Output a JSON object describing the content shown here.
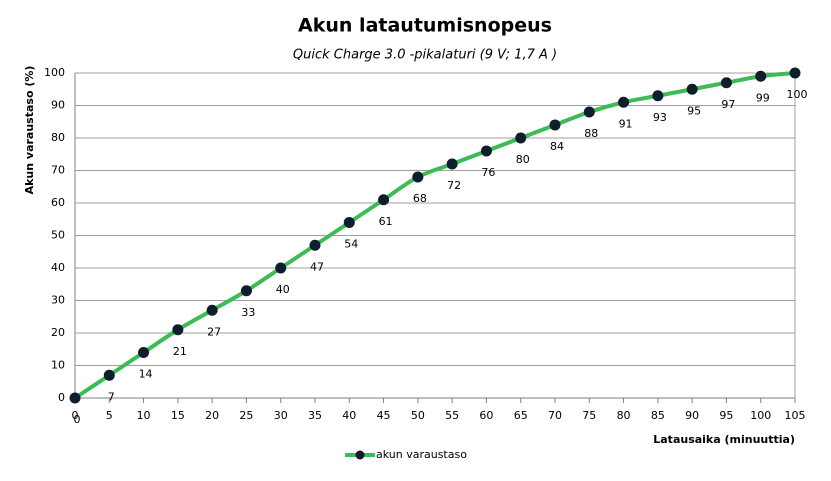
{
  "chart_data": {
    "type": "line",
    "title": "Akun latautumisnopeus",
    "subtitle": "Quick Charge  3.0 -pikalaturi  (9 V; 1,7 A )",
    "x_label": "Latausaika  (minuuttia)",
    "y_label": "Akun varaustaso  (%)",
    "x": [
      0,
      5,
      10,
      15,
      20,
      25,
      30,
      35,
      40,
      45,
      50,
      55,
      60,
      65,
      70,
      75,
      80,
      85,
      90,
      95,
      100,
      105
    ],
    "series": [
      {
        "name": "akun varaustaso",
        "color": "#3dbb55",
        "marker_color": "#0e1e2c",
        "values": [
          0,
          7,
          14,
          21,
          27,
          33,
          40,
          47,
          54,
          61,
          68,
          72,
          76,
          80,
          84,
          88,
          91,
          93,
          95,
          97,
          99,
          100
        ]
      }
    ],
    "xlim": [
      0,
      105
    ],
    "xticks": [
      0,
      5,
      10,
      15,
      20,
      25,
      30,
      35,
      40,
      45,
      50,
      55,
      60,
      65,
      70,
      75,
      80,
      85,
      90,
      95,
      100,
      105
    ],
    "ylim": [
      0,
      100
    ],
    "yticks": [
      0,
      10,
      20,
      30,
      40,
      50,
      60,
      70,
      80,
      90,
      100
    ],
    "grid": true,
    "legend": "bottom"
  }
}
